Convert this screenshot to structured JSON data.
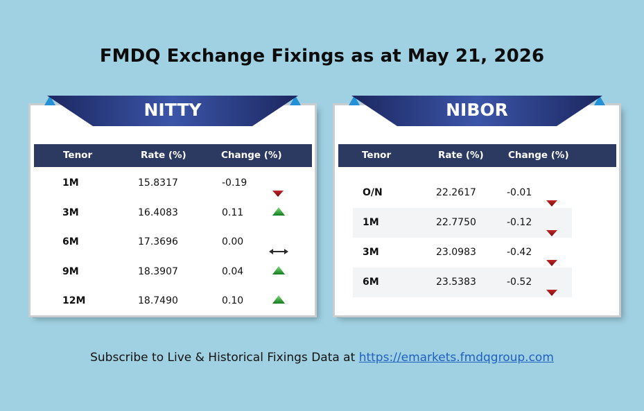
{
  "title": "FMDQ Exchange Fixings as at May 21, 2026",
  "columns": {
    "tenor": "Tenor",
    "rate": "Rate (%)",
    "change": "Change (%)"
  },
  "nitty": {
    "label": "NITTY",
    "rows": [
      {
        "tenor": "1M",
        "rate": "15.8317",
        "change": "-0.19",
        "direction": "down",
        "icon": "arrow-down-icon"
      },
      {
        "tenor": "3M",
        "rate": "16.4083",
        "change": "0.11",
        "direction": "up",
        "icon": "arrow-up-icon"
      },
      {
        "tenor": "6M",
        "rate": "17.3696",
        "change": "0.00",
        "direction": "flat",
        "icon": "double-arrow-icon"
      },
      {
        "tenor": "9M",
        "rate": "18.3907",
        "change": "0.04",
        "direction": "up",
        "icon": "arrow-up-icon"
      },
      {
        "tenor": "12M",
        "rate": "18.7490",
        "change": "0.10",
        "direction": "up",
        "icon": "arrow-up-icon"
      }
    ]
  },
  "nibor": {
    "label": "NIBOR",
    "rows": [
      {
        "tenor": "O/N",
        "rate": "22.2617",
        "change": "-0.01",
        "direction": "down",
        "icon": "arrow-down-icon"
      },
      {
        "tenor": "1M",
        "rate": "22.7750",
        "change": "-0.12",
        "direction": "down",
        "icon": "arrow-down-icon"
      },
      {
        "tenor": "3M",
        "rate": "23.0983",
        "change": "-0.42",
        "direction": "down",
        "icon": "arrow-down-icon"
      },
      {
        "tenor": "6M",
        "rate": "23.5383",
        "change": "-0.52",
        "direction": "down",
        "icon": "arrow-down-icon"
      }
    ]
  },
  "footer": {
    "text": "Subscribe to Live & Historical Fixings Data at ",
    "link": "https://emarkets.fmdqgroup.com"
  },
  "colors": {
    "background": "#a0d1e2",
    "header_bar": "#2c3a62",
    "banner": "#2a3a80",
    "up": "#1e9a2e",
    "down": "#a01515",
    "link": "#1f5fbf"
  }
}
